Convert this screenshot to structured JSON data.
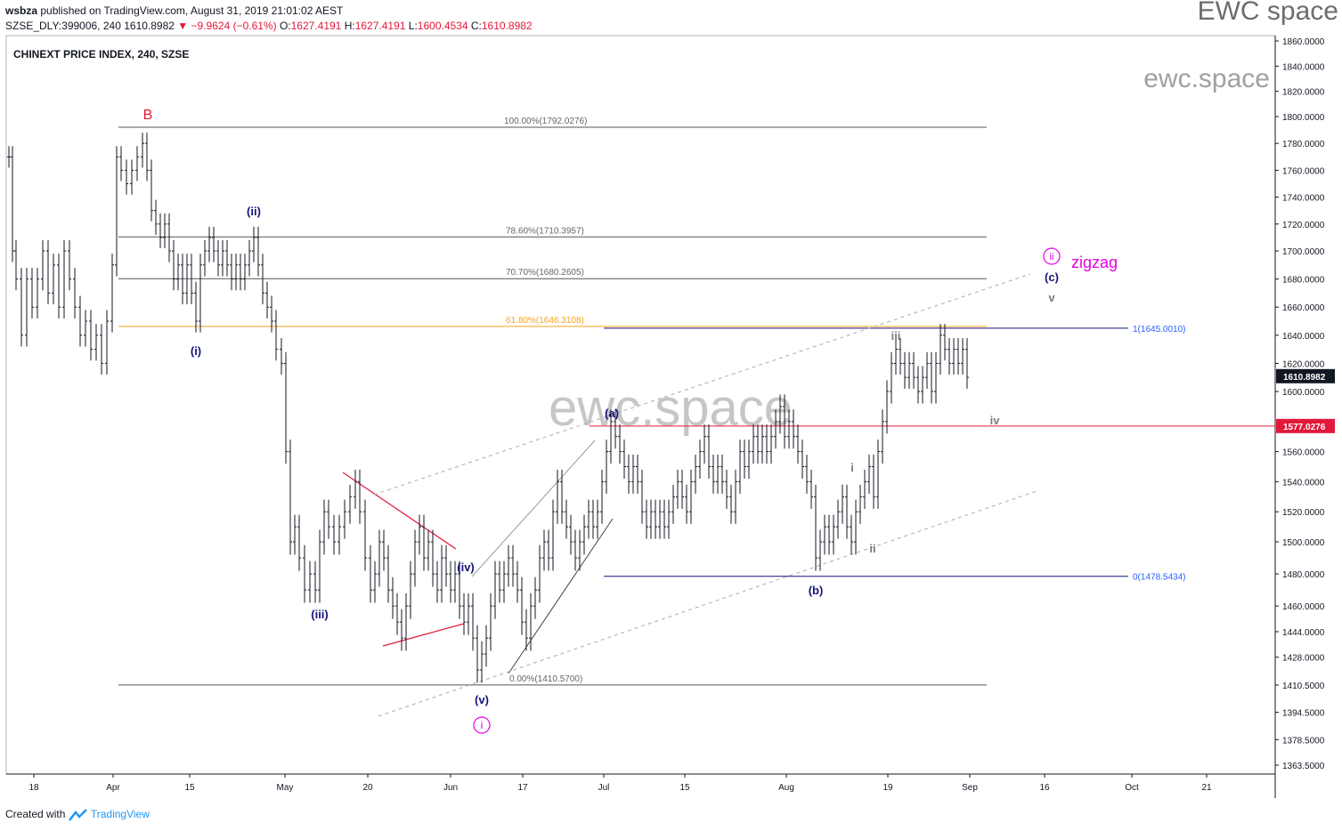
{
  "header": {
    "publisher": "wsbza",
    "published_text": "published on TradingView.com, August 31, 2019 21:01:02 AEST",
    "symbol_line_prefix": "SZSE_DLY:399006, 240",
    "last": "1610.8982",
    "change": "−9.9624 (−0.61%)",
    "o_label": "O:",
    "o_val": "1627.4191",
    "h_label": "H:",
    "h_val": "1627.4191",
    "l_label": "L:",
    "l_val": "1600.4534",
    "c_label": "C:",
    "c_val": "1610.8982",
    "brand": "EWC space"
  },
  "footer": {
    "created_with": "Created with",
    "tradingview": "TradingView"
  },
  "colors": {
    "red": "#e2183a",
    "navy": "#14147a",
    "magenta": "#e200e2",
    "gray": "#7b7b7b",
    "orange": "#f7a31c",
    "blue_text": "#2962ff"
  },
  "chart_data": {
    "type": "candlestick",
    "title": "CHINEXT PRICE INDEX, 240, SZSE",
    "watermark_center": "ewc.space",
    "watermark_corner": "ewc.space",
    "y_axis_ticks": [
      "1860.0000",
      "1840.0000",
      "1820.0000",
      "1800.0000",
      "1780.0000",
      "1760.0000",
      "1740.0000",
      "1720.0000",
      "1700.0000",
      "1680.0000",
      "1660.0000",
      "1640.0000",
      "1620.0000",
      "1600.0000",
      "1577.0276",
      "1560.0000",
      "1540.0000",
      "1520.0000",
      "1500.0000",
      "1480.0000",
      "1460.0000",
      "1444.0000",
      "1428.0000",
      "1410.5000",
      "1394.5000",
      "1378.5000",
      "1363.5000"
    ],
    "x_axis_ticks": [
      "18",
      "Apr",
      "15",
      "May",
      "20",
      "Jun",
      "17",
      "Jul",
      "15",
      "Aug",
      "19",
      "Sep",
      "16",
      "Oct",
      "21"
    ],
    "price_labels": {
      "last": "1610.8982",
      "red_line": "1577.0276"
    },
    "fib_levels": [
      {
        "label": "100.00%(1792.0276)",
        "value": 1792.0276
      },
      {
        "label": "78.60%(1710.3957)",
        "value": 1710.3957
      },
      {
        "label": "70.70%(1680.2605)",
        "value": 1680.2605
      },
      {
        "label": "61.80%(1646.3108)",
        "value": 1646.3108
      },
      {
        "label": "0.00%(1410.5700)",
        "value": 1410.57
      }
    ],
    "projection_levels": [
      {
        "label": "1(1645.0010)",
        "value": 1645.001
      },
      {
        "label": "0(1478.5434)",
        "value": 1478.5434
      }
    ],
    "wave_labels": {
      "B": "B",
      "i_circle": "i",
      "ii_circle": "ii",
      "zigzag": "zigzag",
      "i_paren": "(i)",
      "ii_paren": "(ii)",
      "iii_paren": "(iii)",
      "iv_paren": "(iv)",
      "v_paren": "(v)",
      "a_paren": "(a)",
      "b_paren": "(b)",
      "c_paren": "(c)",
      "i_minor": "i",
      "ii_minor": "ii",
      "iii_minor": "iii",
      "iv_minor": "iv",
      "v_minor": "v"
    }
  }
}
